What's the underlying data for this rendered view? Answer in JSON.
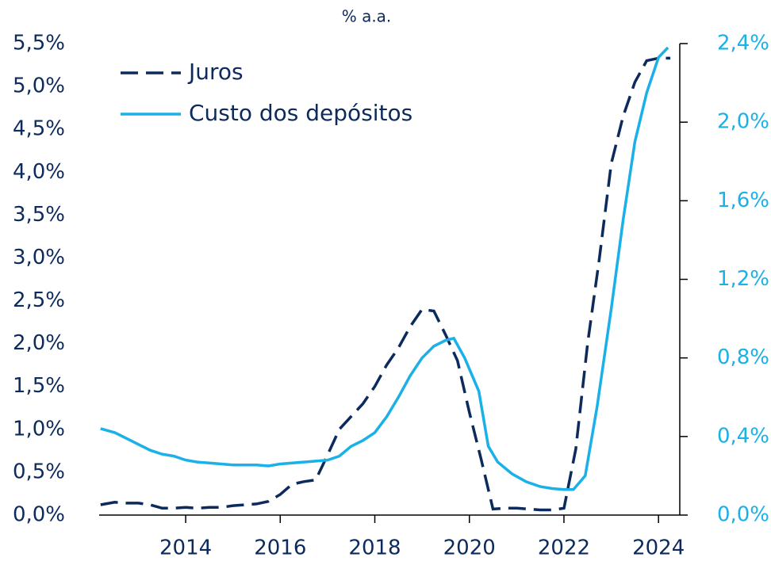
{
  "chart_data": {
    "type": "line",
    "title": "% a.a.",
    "xlim": [
      2012.17,
      2024.45
    ],
    "xticks": [
      2014,
      2016,
      2018,
      2020,
      2022,
      2024
    ],
    "ylim": [
      0,
      5.5
    ],
    "yticks": [
      {
        "value": 0,
        "label": "0,0%"
      },
      {
        "value": 0.5,
        "label": "0,5%"
      },
      {
        "value": 1,
        "label": "1,0%"
      },
      {
        "value": 1.5,
        "label": "1,5%"
      },
      {
        "value": 2,
        "label": "2,0%"
      },
      {
        "value": 2.5,
        "label": "2,5%"
      },
      {
        "value": 3,
        "label": "3,0%"
      },
      {
        "value": 3.5,
        "label": "3,5%"
      },
      {
        "value": 4,
        "label": "4,0%"
      },
      {
        "value": 4.5,
        "label": "4,5%"
      },
      {
        "value": 5,
        "label": "5,0%"
      },
      {
        "value": 5.5,
        "label": "5,5%"
      }
    ],
    "y2lim": [
      0,
      2.4
    ],
    "y2ticks": [
      {
        "value": 0,
        "label": "0,0%"
      },
      {
        "value": 0.4,
        "label": "0,4%"
      },
      {
        "value": 0.8,
        "label": "0,8%"
      },
      {
        "value": 1.2,
        "label": "1,2%"
      },
      {
        "value": 1.6,
        "label": "1,6%"
      },
      {
        "value": 2.0,
        "label": "2,0%"
      },
      {
        "value": 2.4,
        "label": "2,4%"
      }
    ],
    "legend": "upper left",
    "series": [
      {
        "name": "Juros",
        "color": "#0d2a5c",
        "dashed": true,
        "x": [
          2012.2,
          2012.5,
          2012.75,
          2013,
          2013.25,
          2013.5,
          2013.75,
          2014,
          2014.25,
          2014.5,
          2014.75,
          2015,
          2015.25,
          2015.5,
          2015.75,
          2016,
          2016.25,
          2016.5,
          2016.75,
          2017,
          2017.25,
          2017.5,
          2017.75,
          2018,
          2018.25,
          2018.5,
          2018.75,
          2019,
          2019.25,
          2019.5,
          2019.75,
          2020,
          2020.25,
          2020.5,
          2020.75,
          2021,
          2021.25,
          2021.5,
          2021.75,
          2022,
          2022.25,
          2022.5,
          2022.75,
          2023,
          2023.25,
          2023.5,
          2023.75,
          2024,
          2024.25
        ],
        "values": [
          0.12,
          0.15,
          0.14,
          0.14,
          0.12,
          0.08,
          0.08,
          0.09,
          0.08,
          0.09,
          0.09,
          0.11,
          0.12,
          0.13,
          0.16,
          0.24,
          0.36,
          0.39,
          0.41,
          0.7,
          1.0,
          1.15,
          1.3,
          1.5,
          1.75,
          1.95,
          2.2,
          2.4,
          2.38,
          2.1,
          1.8,
          1.2,
          0.65,
          0.07,
          0.08,
          0.08,
          0.07,
          0.06,
          0.06,
          0.08,
          0.77,
          2.0,
          3.0,
          4.1,
          4.65,
          5.05,
          5.3,
          5.33,
          5.33
        ]
      },
      {
        "name": "Custo dos depósitos",
        "color": "#1ab0e8",
        "dashed": false,
        "axis": "y2",
        "x": [
          2012.2,
          2012.5,
          2012.75,
          2013,
          2013.25,
          2013.5,
          2013.75,
          2014,
          2014.25,
          2014.5,
          2014.75,
          2015,
          2015.5,
          2015.75,
          2016,
          2016.5,
          2017,
          2017.25,
          2017.5,
          2017.75,
          2018,
          2018.25,
          2018.5,
          2018.75,
          2019,
          2019.25,
          2019.5,
          2019.67,
          2019.9,
          2020.2,
          2020.4,
          2020.6,
          2020.9,
          2021.2,
          2021.5,
          2021.75,
          2022,
          2022.2,
          2022.45,
          2022.7,
          2023,
          2023.25,
          2023.5,
          2023.75,
          2024,
          2024.2
        ],
        "values": [
          0.44,
          0.42,
          0.39,
          0.36,
          0.33,
          0.31,
          0.3,
          0.28,
          0.27,
          0.265,
          0.26,
          0.255,
          0.255,
          0.25,
          0.26,
          0.27,
          0.28,
          0.3,
          0.35,
          0.38,
          0.42,
          0.5,
          0.6,
          0.71,
          0.8,
          0.86,
          0.89,
          0.9,
          0.8,
          0.63,
          0.35,
          0.27,
          0.21,
          0.17,
          0.145,
          0.135,
          0.13,
          0.13,
          0.2,
          0.55,
          1.05,
          1.5,
          1.9,
          2.15,
          2.33,
          2.38
        ]
      }
    ]
  }
}
